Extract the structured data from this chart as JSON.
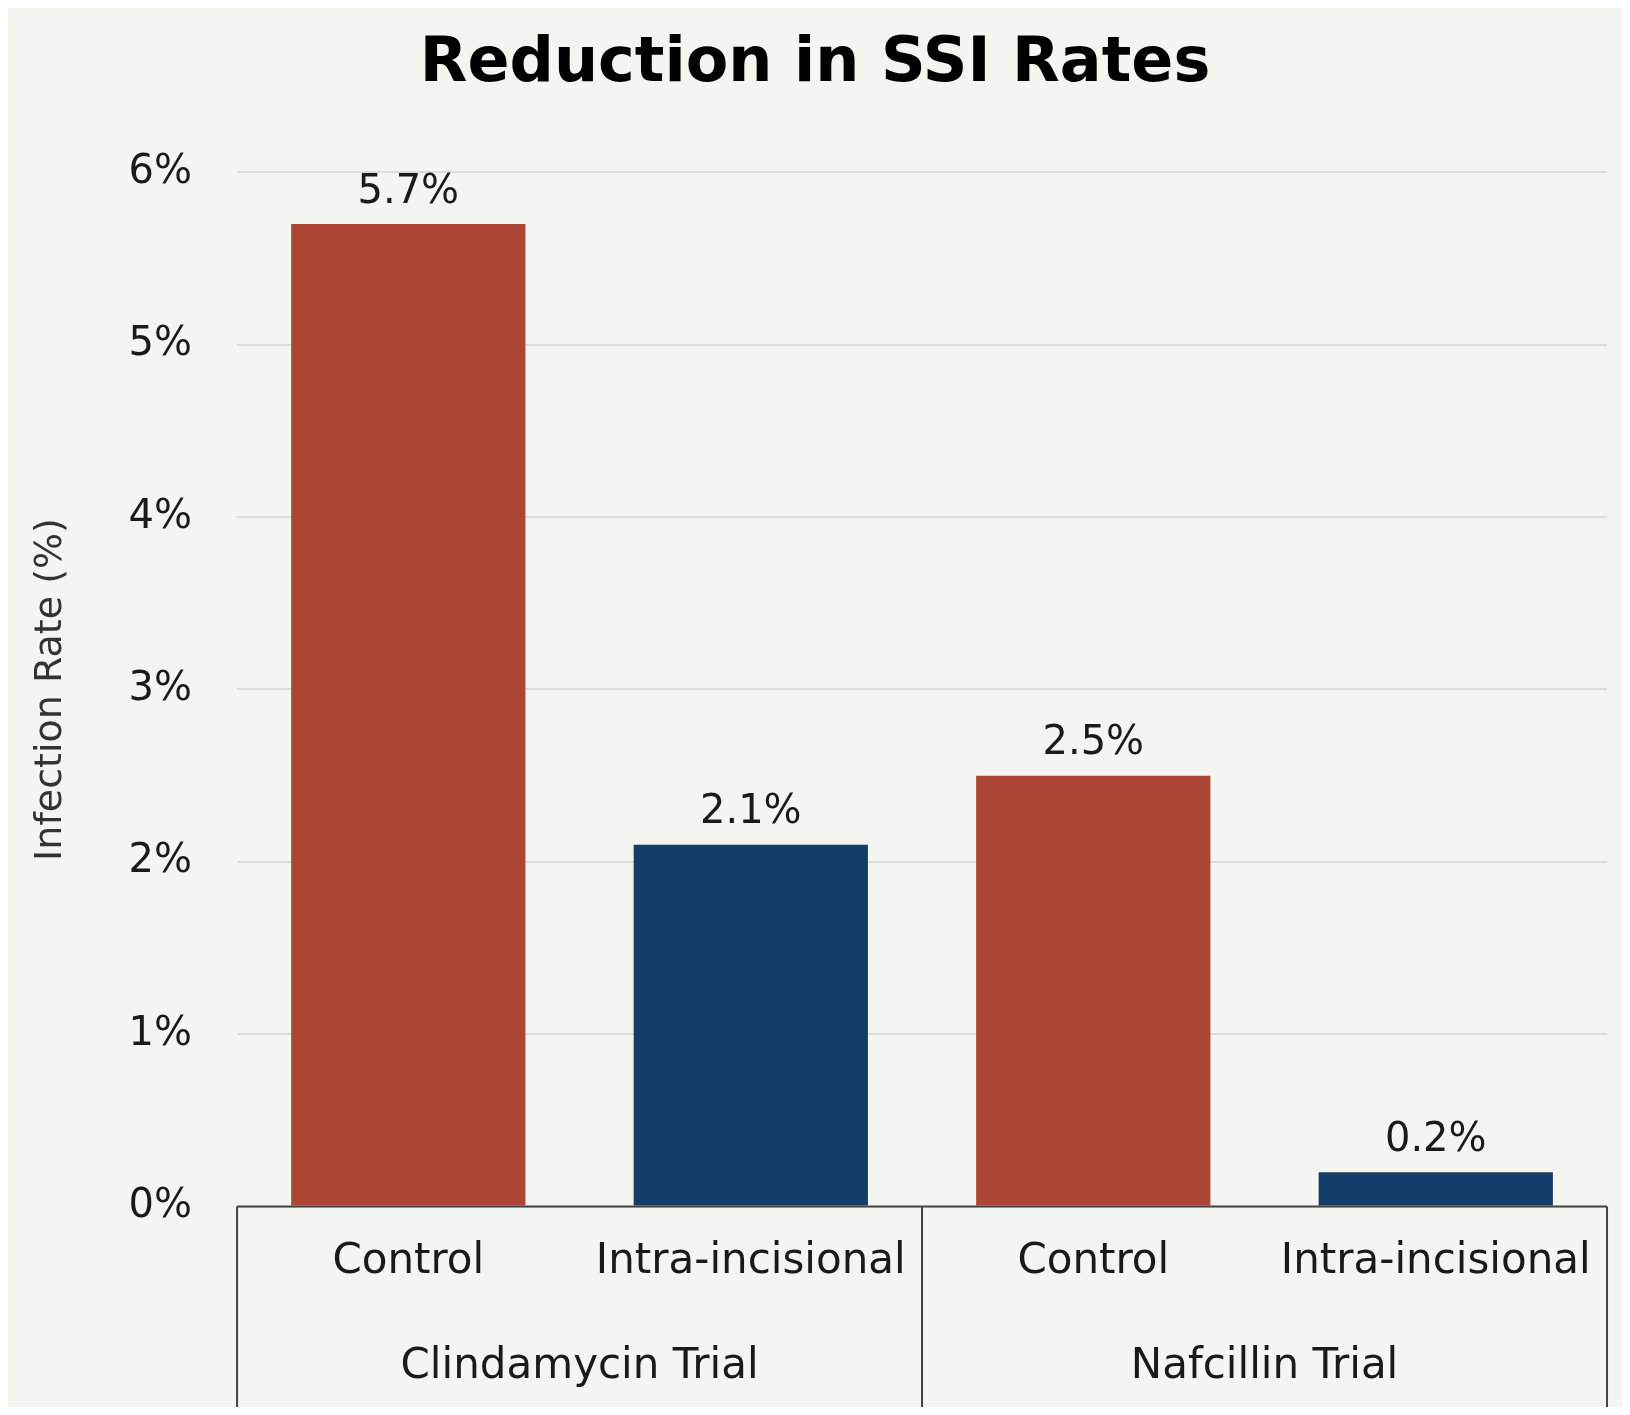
{
  "chart_data": {
    "type": "bar",
    "title": "Reduction in SSI Rates",
    "ylabel": "Infection Rate (%)",
    "categories": [
      "Control",
      "Intra-incisional",
      "Control",
      "Intra-incisional"
    ],
    "values": [
      5.7,
      2.1,
      2.5,
      0.2
    ],
    "colors": [
      "#ac4736",
      "#143d69",
      "#ac4736",
      "#143d69"
    ],
    "value_labels": [
      "5.7%",
      "2.1%",
      "2.5%",
      "0.2%"
    ],
    "ylim": [
      0,
      6
    ],
    "yticks": [
      {
        "value": 0,
        "label": "0%"
      },
      {
        "value": 1,
        "label": "1%"
      },
      {
        "value": 2,
        "label": "2%"
      },
      {
        "value": 3,
        "label": "3%"
      },
      {
        "value": 4,
        "label": "4%"
      },
      {
        "value": 5,
        "label": "5%"
      },
      {
        "value": 6,
        "label": "6%"
      }
    ],
    "grid": "y",
    "legend": false,
    "annotations": [
      "Clindamycin Trial",
      "Nafcillin Trial"
    ]
  }
}
